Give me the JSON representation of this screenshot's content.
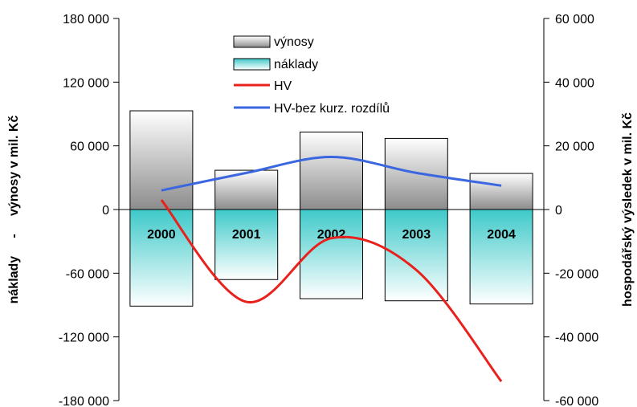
{
  "chart_data": {
    "type": "bar",
    "categories": [
      "2000",
      "2001",
      "2002",
      "2003",
      "2004"
    ],
    "series": [
      {
        "name": "výnosy",
        "kind": "bar",
        "axis": "left",
        "values": [
          93000,
          37000,
          73000,
          67000,
          34000
        ]
      },
      {
        "name": "náklady",
        "kind": "bar",
        "axis": "left",
        "values": [
          -91000,
          -66000,
          -84000,
          -86000,
          -89000
        ]
      },
      {
        "name": "HV",
        "kind": "line",
        "axis": "right",
        "values": [
          3000,
          -29000,
          -9000,
          -19000,
          -54000
        ]
      },
      {
        "name": "HV-bez kurz. rozdílů",
        "kind": "line",
        "axis": "right",
        "values": [
          6000,
          11500,
          16500,
          11500,
          7500
        ]
      }
    ],
    "ylabel_left": "náklady     -     výnosy v mil. Kč",
    "ylabel_right": "hospodářský výsledek v mil. Kč",
    "ylim_left": [
      -180000,
      180000
    ],
    "ylim_right": [
      -60000,
      60000
    ],
    "yticks_left": [
      "180 000",
      "120 000",
      "60 000",
      "0",
      "-60 000",
      "-120 000",
      "-180 000"
    ],
    "yticks_right": [
      "60 000",
      "40 000",
      "20 000",
      "0",
      "-20 000",
      "-40 000",
      "-60 000"
    ],
    "grid": false,
    "legend_position": "top-center",
    "colors": {
      "vynosy_top": "#ffffff",
      "vynosy_bottom": "#8c8c8c",
      "naklady_top": "#3ec9c9",
      "naklady_bottom": "#ffffff",
      "hv": "#e8211d",
      "hv_bez": "#3a66e0"
    }
  }
}
